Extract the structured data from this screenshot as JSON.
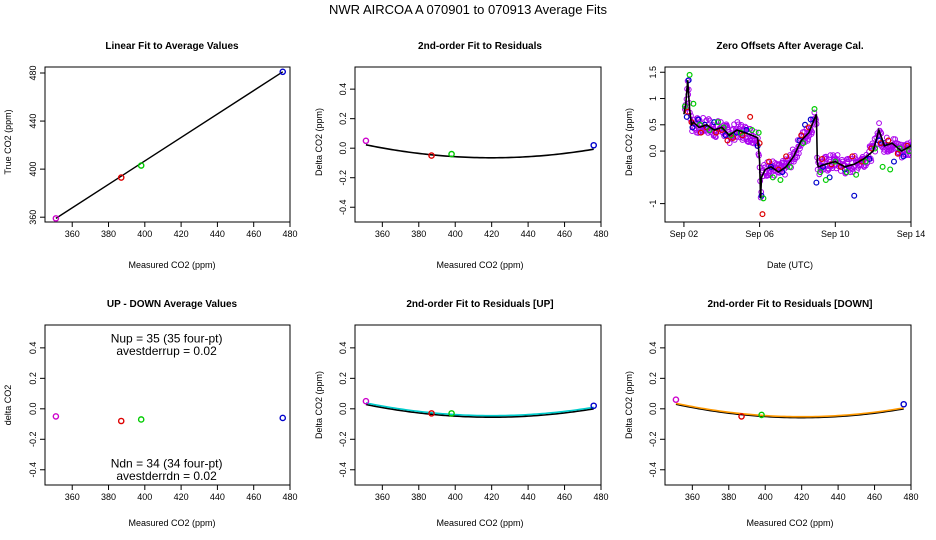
{
  "figure": {
    "title": "NWR   AIRCOA A   070901 to 070913   Average Fits"
  },
  "point_colors": [
    "#cc00cc",
    "#dd0000",
    "#00cc00",
    "#0000cc"
  ],
  "chart_data": [
    {
      "id": "p1",
      "type": "scatter",
      "title": "Linear Fit to Average Values",
      "xlabel": "Measured CO2 (ppm)",
      "ylabel": "True CO2 (ppm)",
      "xlim": [
        345,
        480
      ],
      "ylim": [
        356,
        485
      ],
      "xticks": [
        360,
        380,
        400,
        420,
        440,
        460,
        480
      ],
      "yticks": [
        360,
        400,
        440,
        480
      ],
      "points": [
        {
          "x": 351,
          "y": 359,
          "color": "#cc00cc"
        },
        {
          "x": 387,
          "y": 393,
          "color": "#dd0000"
        },
        {
          "x": 398,
          "y": 403,
          "color": "#00cc00"
        },
        {
          "x": 476,
          "y": 481,
          "color": "#0000cc"
        }
      ],
      "fit_line": {
        "x0": 351,
        "y0": 359,
        "x1": 476,
        "y1": 481,
        "color": "#000000"
      }
    },
    {
      "id": "p2",
      "type": "scatter",
      "title": "2nd-order Fit to Residuals",
      "xlabel": "Measured CO2 (ppm)",
      "ylabel": "Delta CO2 (ppm)",
      "xlim": [
        345,
        480
      ],
      "ylim": [
        -0.5,
        0.55
      ],
      "xticks": [
        360,
        380,
        400,
        420,
        440,
        460,
        480
      ],
      "yticks": [
        -0.4,
        -0.2,
        0.0,
        0.2,
        0.4
      ],
      "points": [
        {
          "x": 351,
          "y": 0.05,
          "color": "#cc00cc"
        },
        {
          "x": 387,
          "y": -0.05,
          "color": "#dd0000"
        },
        {
          "x": 398,
          "y": -0.04,
          "color": "#00cc00"
        },
        {
          "x": 476,
          "y": 0.02,
          "color": "#0000cc"
        }
      ],
      "curves": [
        {
          "color": "#000000",
          "x_start": 351,
          "x_end": 476,
          "xv": 420,
          "yv": -0.065,
          "a": 1.85e-05
        }
      ]
    },
    {
      "id": "p3",
      "type": "scatter",
      "title": "Zero Offsets After Average Cal.",
      "xlabel": "Date (UTC)",
      "ylabel": "Delta CO2 (ppm)",
      "xlim": [
        "Sep 01",
        "Sep 14"
      ],
      "ylim": [
        -1.35,
        1.6
      ],
      "xticks": [
        "Sep 02",
        "Sep 06",
        "Sep 10",
        "Sep 14"
      ],
      "yticks": [
        -1.0,
        0.0,
        0.5,
        1.0,
        1.5
      ],
      "series": [
        {
          "color": "#0000cc",
          "t": [
            1.15,
            1.25,
            1.45,
            1.75,
            2.1,
            2.6,
            3.2,
            3.8,
            4.3,
            4.9,
            5.1,
            5.6,
            6.2,
            7.1,
            7.4,
            7.7,
            8.0,
            8.35,
            8.7,
            9.5,
            10.0,
            10.8,
            11.3,
            11.6,
            12.1,
            12.6,
            13.1,
            13.3
          ],
          "y": [
            0.65,
            1.35,
            0.45,
            0.6,
            0.5,
            0.55,
            0.3,
            0.35,
            0.4,
            0.1,
            -0.85,
            -0.3,
            -0.4,
            0.2,
            0.5,
            0.6,
            -0.6,
            -0.3,
            -0.5,
            -0.35,
            -0.85,
            -0.15,
            0.2,
            0.15,
            -0.2,
            -0.1,
            0.1,
            0.55
          ]
        },
        {
          "color": "#dd0000",
          "t": [
            1.2,
            1.4,
            1.9,
            2.2,
            2.7,
            3.0,
            3.3,
            3.6,
            4.1,
            4.5,
            5.0,
            5.15,
            5.5,
            6.0,
            6.4,
            7.2,
            7.6,
            8.3,
            8.8,
            9.3,
            9.9,
            10.4,
            10.9,
            11.4,
            11.8,
            12.3,
            12.8,
            13.2
          ],
          "y": [
            0.75,
            0.55,
            0.35,
            0.45,
            0.35,
            0.4,
            0.2,
            0.25,
            0.3,
            0.65,
            0.15,
            -1.2,
            -0.2,
            -0.35,
            -0.1,
            0.3,
            0.45,
            -0.15,
            -0.25,
            -0.3,
            -0.1,
            -0.2,
            0.05,
            0.15,
            0.2,
            -0.05,
            0.1,
            0.25
          ]
        },
        {
          "color": "#00cc00",
          "t": [
            1.05,
            1.3,
            1.5,
            1.85,
            2.35,
            2.8,
            3.1,
            3.5,
            4.0,
            4.6,
            4.95,
            5.2,
            5.7,
            6.1,
            6.6,
            7.3,
            7.9,
            8.2,
            8.5,
            9.0,
            9.6,
            10.1,
            10.6,
            11.1,
            11.5,
            11.9,
            12.4,
            12.9,
            13.25
          ],
          "y": [
            0.85,
            1.45,
            0.9,
            0.5,
            0.4,
            0.55,
            0.45,
            0.3,
            0.35,
            0.4,
            0.35,
            -0.9,
            -0.5,
            -0.55,
            -0.3,
            0.15,
            0.8,
            -0.4,
            -0.55,
            -0.2,
            -0.4,
            -0.45,
            -0.2,
            0.05,
            -0.3,
            -0.35,
            0.05,
            0.0,
            0.3
          ]
        }
      ],
      "noise_series": {
        "color": "#aa00ee",
        "t_start": 1.05,
        "t_end": 13.3,
        "count": 420
      },
      "trend": {
        "color": "#000000",
        "t": [
          1.0,
          1.1,
          1.2,
          1.3,
          1.4,
          1.5,
          1.8,
          2.2,
          2.6,
          3.0,
          3.4,
          3.8,
          4.2,
          4.6,
          4.9,
          5.0,
          5.05,
          5.1,
          5.3,
          5.6,
          6.0,
          6.4,
          6.8,
          7.2,
          7.6,
          8.0,
          8.05,
          8.1,
          8.5,
          9.0,
          9.5,
          10.0,
          10.5,
          11.0,
          11.3,
          11.6,
          12.0,
          12.5,
          13.0,
          13.3
        ],
        "y": [
          0.7,
          0.9,
          1.35,
          0.8,
          0.5,
          0.55,
          0.45,
          0.5,
          0.4,
          0.45,
          0.3,
          0.4,
          0.35,
          0.3,
          0.25,
          -0.2,
          -0.9,
          -0.5,
          -0.35,
          -0.3,
          -0.4,
          -0.3,
          -0.1,
          0.2,
          0.35,
          0.7,
          -0.2,
          -0.3,
          -0.25,
          -0.2,
          -0.3,
          -0.25,
          -0.15,
          0.0,
          0.4,
          0.1,
          0.15,
          0.0,
          0.1,
          0.3
        ]
      }
    },
    {
      "id": "p4",
      "type": "scatter",
      "title": "UP - DOWN Average Values",
      "xlabel": "Measured CO2 (ppm)",
      "ylabel": "delta CO2",
      "xlim": [
        345,
        480
      ],
      "ylim": [
        -0.5,
        0.55
      ],
      "xticks": [
        360,
        380,
        400,
        420,
        440,
        460,
        480
      ],
      "yticks": [
        -0.4,
        -0.2,
        0.0,
        0.2,
        0.4
      ],
      "points": [
        {
          "x": 351,
          "y": -0.05,
          "color": "#cc00cc"
        },
        {
          "x": 387,
          "y": -0.08,
          "color": "#dd0000"
        },
        {
          "x": 398,
          "y": -0.07,
          "color": "#00cc00"
        },
        {
          "x": 476,
          "y": -0.06,
          "color": "#0000cc"
        }
      ],
      "annotations": [
        {
          "text": "Nup = 35 (35 four-pt)",
          "x": 412,
          "y": 0.46
        },
        {
          "text": "avestderrup =  0.02",
          "x": 412,
          "y": 0.38
        },
        {
          "text": "Ndn = 34 (34 four-pt)",
          "x": 412,
          "y": -0.36
        },
        {
          "text": "avestderrdn =  0.02",
          "x": 412,
          "y": -0.44
        }
      ]
    },
    {
      "id": "p5",
      "type": "scatter",
      "title": "2nd-order Fit to Residuals [UP]",
      "xlabel": "Measured CO2 (ppm)",
      "ylabel": "Delta CO2 (ppm)",
      "xlim": [
        345,
        480
      ],
      "ylim": [
        -0.5,
        0.55
      ],
      "xticks": [
        360,
        380,
        400,
        420,
        440,
        460,
        480
      ],
      "yticks": [
        -0.4,
        -0.2,
        0.0,
        0.2,
        0.4
      ],
      "points": [
        {
          "x": 351,
          "y": 0.05,
          "color": "#cc00cc"
        },
        {
          "x": 387,
          "y": -0.03,
          "color": "#dd0000"
        },
        {
          "x": 398,
          "y": -0.03,
          "color": "#00cc00"
        },
        {
          "x": 476,
          "y": 0.02,
          "color": "#0000cc"
        }
      ],
      "curves": [
        {
          "color": "#000000",
          "x_start": 351,
          "x_end": 476,
          "xv": 420,
          "yv": -0.055,
          "a": 1.75e-05
        },
        {
          "color": "#00cccc",
          "x_start": 351,
          "x_end": 476,
          "xv": 420,
          "yv": -0.045,
          "a": 1.75e-05
        }
      ]
    },
    {
      "id": "p6",
      "type": "scatter",
      "title": "2nd-order Fit to Residuals [DOWN]",
      "xlabel": "Measured CO2 (ppm)",
      "ylabel": "Delta CO2 (ppm)",
      "xlim": [
        345,
        480
      ],
      "ylim": [
        -0.5,
        0.55
      ],
      "xticks": [
        360,
        380,
        400,
        420,
        440,
        460,
        480
      ],
      "yticks": [
        -0.4,
        -0.2,
        0.0,
        0.2,
        0.4
      ],
      "points": [
        {
          "x": 351,
          "y": 0.06,
          "color": "#cc00cc"
        },
        {
          "x": 387,
          "y": -0.05,
          "color": "#dd0000"
        },
        {
          "x": 398,
          "y": -0.04,
          "color": "#00cc00"
        },
        {
          "x": 476,
          "y": 0.03,
          "color": "#0000cc"
        }
      ],
      "curves": [
        {
          "color": "#000000",
          "x_start": 351,
          "x_end": 476,
          "xv": 420,
          "yv": -0.058,
          "a": 1.85e-05
        },
        {
          "color": "#ff9900",
          "x_start": 351,
          "x_end": 476,
          "xv": 420,
          "yv": -0.052,
          "a": 1.85e-05
        }
      ]
    }
  ]
}
